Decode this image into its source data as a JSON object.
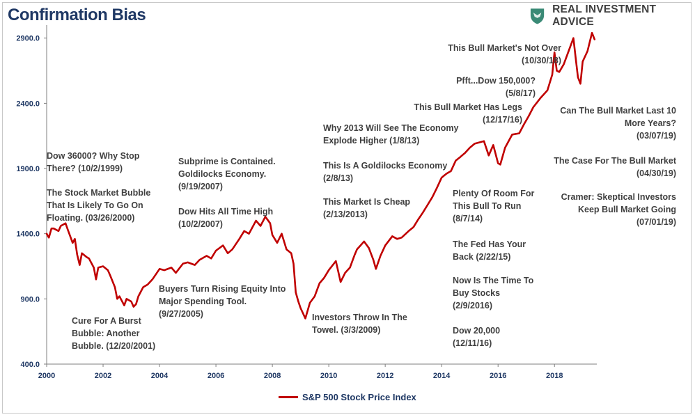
{
  "title": "Confirmation Bias",
  "brand": {
    "name": "REAL INVESTMENT ADVICE",
    "logo_icon": "eagle-shield-icon",
    "logo_color": "#3a8a76"
  },
  "colors": {
    "series": "#c00000",
    "title": "#1f3864",
    "axis_text": "#1f3864",
    "annotation": "#404040"
  },
  "chart_data": {
    "type": "line",
    "title": "Confirmation Bias",
    "xlabel": "",
    "ylabel": "",
    "xlim": [
      2000,
      2019.5
    ],
    "ylim": [
      400,
      3000
    ],
    "yticks": [
      400,
      900,
      1400,
      1900,
      2400,
      2900
    ],
    "ytick_labels": [
      "400.0",
      "900.0",
      "1400.0",
      "1900.0",
      "2400.0",
      "2900.0"
    ],
    "xticks": [
      2000,
      2002,
      2004,
      2006,
      2008,
      2010,
      2012,
      2014,
      2016,
      2018
    ],
    "xtick_labels": [
      "2000",
      "2002",
      "2004",
      "2006",
      "2008",
      "2010",
      "2012",
      "2014",
      "2016",
      "2018"
    ],
    "legend": "bottom-center",
    "grid": false,
    "series": [
      {
        "name": "S&P 500 Stock Price Index",
        "x": [
          2000.0,
          2000.08,
          2000.17,
          2000.25,
          2000.42,
          2000.5,
          2000.67,
          2000.75,
          2000.92,
          2001.0,
          2001.08,
          2001.17,
          2001.25,
          2001.42,
          2001.5,
          2001.67,
          2001.75,
          2001.83,
          2002.0,
          2002.17,
          2002.25,
          2002.42,
          2002.5,
          2002.58,
          2002.75,
          2002.83,
          2003.0,
          2003.08,
          2003.17,
          2003.25,
          2003.42,
          2003.58,
          2003.75,
          2004.0,
          2004.17,
          2004.42,
          2004.58,
          2004.83,
          2005.0,
          2005.25,
          2005.42,
          2005.67,
          2005.83,
          2006.0,
          2006.25,
          2006.42,
          2006.58,
          2006.83,
          2007.0,
          2007.17,
          2007.42,
          2007.58,
          2007.75,
          2007.92,
          2008.0,
          2008.17,
          2008.33,
          2008.5,
          2008.67,
          2008.75,
          2008.83,
          2008.92,
          2009.0,
          2009.17,
          2009.33,
          2009.5,
          2009.67,
          2009.83,
          2010.0,
          2010.25,
          2010.42,
          2010.58,
          2010.75,
          2010.92,
          2011.0,
          2011.25,
          2011.42,
          2011.58,
          2011.67,
          2011.83,
          2012.0,
          2012.25,
          2012.42,
          2012.58,
          2012.83,
          2013.0,
          2013.17,
          2013.33,
          2013.5,
          2013.67,
          2013.83,
          2014.0,
          2014.17,
          2014.33,
          2014.5,
          2014.67,
          2014.83,
          2015.0,
          2015.17,
          2015.33,
          2015.5,
          2015.67,
          2015.83,
          2016.0,
          2016.08,
          2016.25,
          2016.5,
          2016.75,
          2016.92,
          2017.08,
          2017.25,
          2017.5,
          2017.75,
          2017.92,
          2018.0,
          2018.08,
          2018.17,
          2018.33,
          2018.5,
          2018.67,
          2018.75,
          2018.83,
          2018.92,
          2019.0,
          2019.17,
          2019.33,
          2019.42
        ],
        "y": [
          1400,
          1370,
          1440,
          1440,
          1420,
          1460,
          1480,
          1430,
          1330,
          1360,
          1240,
          1160,
          1250,
          1220,
          1210,
          1140,
          1050,
          1140,
          1150,
          1120,
          1080,
          990,
          900,
          920,
          850,
          900,
          880,
          840,
          860,
          920,
          990,
          1010,
          1050,
          1130,
          1120,
          1140,
          1100,
          1170,
          1180,
          1160,
          1200,
          1230,
          1210,
          1270,
          1310,
          1250,
          1280,
          1360,
          1420,
          1400,
          1500,
          1460,
          1530,
          1480,
          1390,
          1330,
          1400,
          1280,
          1250,
          1170,
          950,
          880,
          830,
          750,
          870,
          920,
          1020,
          1060,
          1120,
          1190,
          1030,
          1100,
          1140,
          1240,
          1280,
          1340,
          1290,
          1200,
          1130,
          1230,
          1310,
          1380,
          1360,
          1370,
          1420,
          1450,
          1510,
          1560,
          1620,
          1680,
          1750,
          1830,
          1860,
          1880,
          1960,
          1990,
          2020,
          2060,
          2090,
          2100,
          2110,
          2000,
          2080,
          1940,
          1930,
          2060,
          2160,
          2170,
          2240,
          2300,
          2370,
          2440,
          2500,
          2620,
          2790,
          2650,
          2640,
          2700,
          2800,
          2900,
          2750,
          2600,
          2550,
          2720,
          2800,
          2940,
          2890
        ]
      }
    ],
    "annotations": [
      {
        "id": "dow-36000",
        "lines": [
          "Dow 36000? Why Stop",
          "There?  (10/2/1999)"
        ]
      },
      {
        "id": "bubble-2000",
        "lines": [
          "The Stock Market Bubble",
          "That Is Likely To Go On",
          "Floating. (03/26/2000)"
        ]
      },
      {
        "id": "cure-bubble",
        "lines": [
          "Cure For A Burst",
          "Bubble: Another",
          "Bubble.  (12/20/2001)"
        ]
      },
      {
        "id": "rising-equity",
        "lines": [
          "Buyers Turn Rising Equity Into",
          "Major Spending Tool.",
          "(9/27/2005)"
        ]
      },
      {
        "id": "subprime",
        "lines": [
          "Subprime is Contained.",
          "Goldilocks Economy.",
          "(9/19/2007)"
        ]
      },
      {
        "id": "dow-high-2007",
        "lines": [
          "Dow Hits All Time High",
          "(10/2/2007)"
        ]
      },
      {
        "id": "investors-throw-towel",
        "lines": [
          "Investors Throw In The",
          "Towel.  (3/3/2009)"
        ]
      },
      {
        "id": "why-2013",
        "lines": [
          "Why 2013 Will See The Economy",
          "Explode Higher (1/8/13)"
        ]
      },
      {
        "id": "goldilocks-2013",
        "lines": [
          "This Is A Goldilocks Economy",
          "(2/8/13)"
        ]
      },
      {
        "id": "market-cheap",
        "lines": [
          "This Market Is Cheap",
          "(2/13/2013)"
        ]
      },
      {
        "id": "plenty-room",
        "lines": [
          "Plenty Of Room For",
          "This Bull To Run",
          "(8/7/14)"
        ]
      },
      {
        "id": "fed-has-back",
        "lines": [
          "The Fed Has Your",
          "Back (2/22/15)"
        ]
      },
      {
        "id": "time-to-buy",
        "lines": [
          "Now Is The Time To",
          "Buy Stocks",
          "(2/9/2016)"
        ]
      },
      {
        "id": "dow-20000",
        "lines": [
          "Dow 20,000",
          "(12/11/16)"
        ]
      },
      {
        "id": "bull-has-legs",
        "lines": [
          "This Bull Market Has Legs",
          "(12/17/16)"
        ]
      },
      {
        "id": "pfft-dow",
        "lines": [
          "Pfft...Dow 150,000?",
          "(5/8/17)"
        ]
      },
      {
        "id": "bull-not-over",
        "lines": [
          "This Bull Market's Not Over",
          "(10/30/18)"
        ]
      },
      {
        "id": "bull-last-10",
        "lines": [
          "Can The Bull Market Last 10",
          "More Years?",
          "(03/07/19)"
        ]
      },
      {
        "id": "case-for-bull",
        "lines": [
          "The Case For The Bull Market",
          "(04/30/19)"
        ]
      },
      {
        "id": "cramer",
        "lines": [
          "Cramer: Skeptical Investors",
          "Keep Bull Market Going",
          "(07/01/19)"
        ]
      }
    ]
  }
}
